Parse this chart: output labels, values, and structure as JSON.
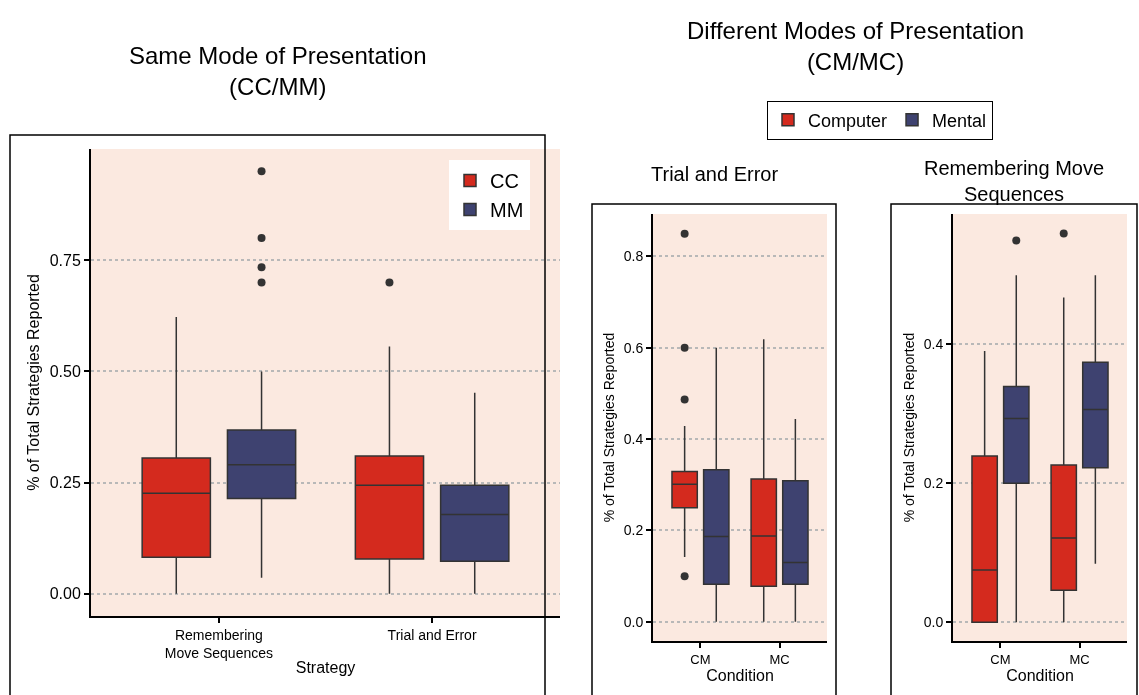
{
  "chart_data": [
    {
      "type": "box",
      "title": "Same Mode of Presentation\n(CC/MM)",
      "xlabel": "Strategy",
      "ylabel": "% of Total Strategies Reported",
      "categories": [
        "Remembering\nMove Sequences",
        "Trial and Error"
      ],
      "ylim": [
        -0.05,
        1.0
      ],
      "yticks": [
        {
          "value": 0,
          "label": "0.00"
        },
        {
          "value": 0.25,
          "label": "0.25"
        },
        {
          "value": 0.5,
          "label": "0.50"
        },
        {
          "value": 0.75,
          "label": "0.75"
        }
      ],
      "grid": "y",
      "legend": "top right",
      "series": [
        {
          "name": "CC",
          "color": "#d42a1e",
          "boxes": [
            {
              "low": 0,
              "q1": 0.082,
              "median": 0.226,
              "q3": 0.305,
              "high": 0.622
            },
            {
              "low": 0,
              "q1": 0.078,
              "median": 0.244,
              "q3": 0.31,
              "high": 0.556,
              "outliers": [
                0.7
              ]
            }
          ]
        },
        {
          "name": "MM",
          "color": "#3e4270",
          "boxes": [
            {
              "low": 0.036,
              "q1": 0.214,
              "median": 0.29,
              "q3": 0.368,
              "high": 0.5,
              "outliers": [
                0.95,
                0.8,
                0.734,
                0.7
              ]
            },
            {
              "low": 0,
              "q1": 0.073,
              "median": 0.178,
              "q3": 0.244,
              "high": 0.452
            }
          ]
        }
      ]
    },
    {
      "type": "box",
      "title": "Different Modes of Presentation\n(CM/MC)",
      "subtitle": "Trial and Error",
      "xlabel": "Condition",
      "ylabel": "% of Total Strategies Reported",
      "categories": [
        "CM",
        "MC"
      ],
      "ylim": [
        -0.042,
        0.893
      ],
      "yticks": [
        {
          "value": 0,
          "label": "0.0"
        },
        {
          "value": 0.2,
          "label": "0.2"
        },
        {
          "value": 0.4,
          "label": "0.4"
        },
        {
          "value": 0.6,
          "label": "0.6"
        },
        {
          "value": 0.8,
          "label": "0.8"
        }
      ],
      "grid": "y",
      "legend": "top",
      "series": [
        {
          "name": "Computer",
          "color": "#d42a1e",
          "boxes": [
            {
              "low": 0.142,
              "q1": 0.25,
              "median": 0.301,
              "q3": 0.329,
              "high": 0.429,
              "outliers": [
                0.85,
                0.6,
                0.487,
                0.1
              ]
            },
            {
              "low": 0,
              "q1": 0.078,
              "median": 0.188,
              "q3": 0.313,
              "high": 0.619
            }
          ]
        },
        {
          "name": "Mental",
          "color": "#3e4270",
          "boxes": [
            {
              "low": 0,
              "q1": 0.082,
              "median": 0.187,
              "q3": 0.333,
              "high": 0.6
            },
            {
              "low": 0,
              "q1": 0.082,
              "median": 0.13,
              "q3": 0.309,
              "high": 0.444
            }
          ]
        }
      ]
    },
    {
      "type": "box",
      "title": "Remembering Move\nSequences",
      "xlabel": "Condition",
      "ylabel": "% of Total Strategies Reported",
      "categories": [
        "CM",
        "MC"
      ],
      "ylim": [
        -0.027,
        0.587
      ],
      "yticks": [
        {
          "value": 0,
          "label": "0.0"
        },
        {
          "value": 0.2,
          "label": "0.2"
        },
        {
          "value": 0.4,
          "label": "0.4"
        }
      ],
      "grid": "y",
      "series": [
        {
          "color": "#d42a1e",
          "boxes": [
            {
              "low": 0,
              "q1": 0,
              "median": 0.075,
              "q3": 0.239,
              "high": 0.39
            },
            {
              "low": 0,
              "q1": 0.046,
              "median": 0.121,
              "q3": 0.226,
              "high": 0.467,
              "outliers": [
                0.559
              ]
            }
          ]
        },
        {
          "color": "#3e4270",
          "boxes": [
            {
              "low": 0,
              "q1": 0.2,
              "median": 0.293,
              "q3": 0.339,
              "high": 0.499,
              "outliers": [
                0.549
              ]
            },
            {
              "low": 0.084,
              "q1": 0.222,
              "median": 0.306,
              "q3": 0.374,
              "high": 0.499
            }
          ]
        }
      ]
    }
  ]
}
